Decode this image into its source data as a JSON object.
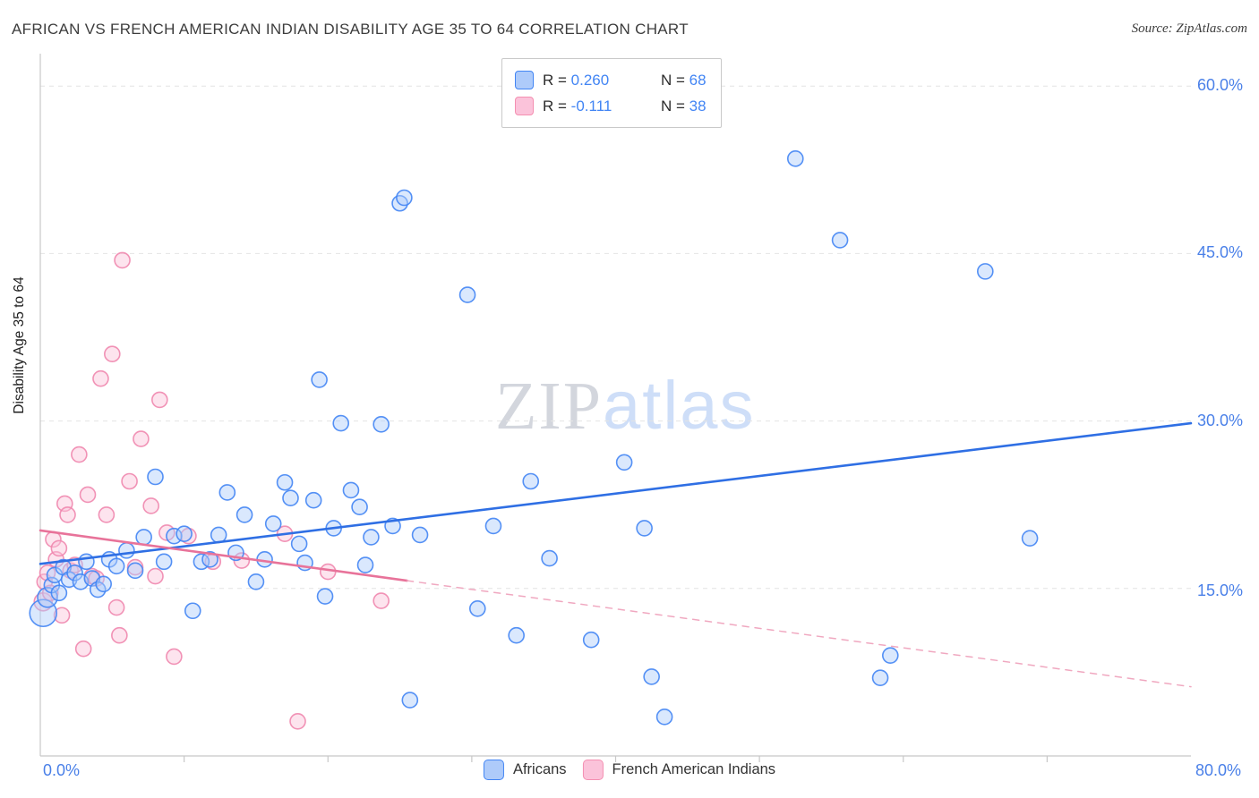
{
  "header": {
    "title": "AFRICAN VS FRENCH AMERICAN INDIAN DISABILITY AGE 35 TO 64 CORRELATION CHART",
    "source": "Source: ZipAtlas.com"
  },
  "legend_box": {
    "series": [
      {
        "r_label": "R = ",
        "r_value": "0.260",
        "n_label": "N = ",
        "n_value": "68",
        "color": "#aecbfa",
        "border": "#4285f4"
      },
      {
        "r_label": "R = ",
        "r_value": "-0.111",
        "n_label": "N = ",
        "n_value": "38",
        "color": "#fbc3da",
        "border": "#f48fb1"
      }
    ]
  },
  "watermark": {
    "part1": "ZIP",
    "part2": "atlas"
  },
  "y_axis": {
    "label": "Disability Age 35 to 64",
    "tick_labels": [
      "60.0%",
      "45.0%",
      "30.0%",
      "15.0%"
    ],
    "tick_values": [
      60,
      45,
      30,
      15
    ]
  },
  "x_axis": {
    "min_label": "0.0%",
    "max_label": "80.0%",
    "min": 0,
    "max": 80
  },
  "bottom_legend": [
    {
      "label": "Africans",
      "color": "#aecbfa",
      "border": "#4285f4"
    },
    {
      "label": "French American Indians",
      "color": "#fbc3da",
      "border": "#f48fb1"
    }
  ],
  "chart_data": {
    "type": "scatter",
    "title": "AFRICAN VS FRENCH AMERICAN INDIAN DISABILITY AGE 35 TO 64 CORRELATION CHART",
    "xlabel": "",
    "ylabel": "Disability Age 35 to 64",
    "xlim": [
      0,
      80
    ],
    "ylim": [
      0,
      62.5
    ],
    "grid_y_values": [
      15,
      30,
      45,
      60
    ],
    "x_tick_step": 10,
    "legend_position": "bottom",
    "series": [
      {
        "name": "Africans",
        "R": 0.26,
        "N": 68,
        "fill": "#aecbfa",
        "stroke": "#4285f4",
        "points": [
          [
            0.2,
            12.8,
            15
          ],
          [
            0.5,
            14.2,
            11
          ],
          [
            0.8,
            15.3
          ],
          [
            1.0,
            16.2
          ],
          [
            1.3,
            14.6
          ],
          [
            1.6,
            16.9
          ],
          [
            2.0,
            15.8
          ],
          [
            2.4,
            16.4
          ],
          [
            2.8,
            15.6
          ],
          [
            3.2,
            17.4
          ],
          [
            3.6,
            15.9
          ],
          [
            4.0,
            14.9
          ],
          [
            4.4,
            15.4
          ],
          [
            4.8,
            17.6
          ],
          [
            5.3,
            17.0
          ],
          [
            6.0,
            18.4
          ],
          [
            6.6,
            16.6
          ],
          [
            7.2,
            19.6
          ],
          [
            8.0,
            25.0
          ],
          [
            8.6,
            17.4
          ],
          [
            9.3,
            19.7
          ],
          [
            10.0,
            19.9
          ],
          [
            10.6,
            13.0
          ],
          [
            11.2,
            17.4
          ],
          [
            11.8,
            17.6
          ],
          [
            12.4,
            19.8
          ],
          [
            13.0,
            23.6
          ],
          [
            13.6,
            18.2
          ],
          [
            14.2,
            21.6
          ],
          [
            15.0,
            15.6
          ],
          [
            15.6,
            17.6
          ],
          [
            16.2,
            20.8
          ],
          [
            17.0,
            24.5
          ],
          [
            17.4,
            23.1
          ],
          [
            18.0,
            19.0
          ],
          [
            18.4,
            17.3
          ],
          [
            19.0,
            22.9
          ],
          [
            19.4,
            33.7
          ],
          [
            19.8,
            14.3
          ],
          [
            20.4,
            20.4
          ],
          [
            20.9,
            29.8
          ],
          [
            21.6,
            23.8
          ],
          [
            22.2,
            22.3
          ],
          [
            22.6,
            17.1
          ],
          [
            23.0,
            19.6
          ],
          [
            23.7,
            29.7
          ],
          [
            24.5,
            20.6
          ],
          [
            25.0,
            49.5
          ],
          [
            25.3,
            50.0
          ],
          [
            25.7,
            5.0
          ],
          [
            26.4,
            19.8
          ],
          [
            29.7,
            41.3
          ],
          [
            30.4,
            13.2
          ],
          [
            31.5,
            20.6
          ],
          [
            33.1,
            10.8
          ],
          [
            34.1,
            24.6
          ],
          [
            35.4,
            17.7
          ],
          [
            38.3,
            10.4
          ],
          [
            40.6,
            26.3
          ],
          [
            42.0,
            20.4
          ],
          [
            42.5,
            7.1
          ],
          [
            43.4,
            3.5
          ],
          [
            52.5,
            53.5
          ],
          [
            55.6,
            46.2
          ],
          [
            58.4,
            7.0
          ],
          [
            59.1,
            9.0
          ],
          [
            65.7,
            43.4
          ],
          [
            68.8,
            19.5
          ]
        ]
      },
      {
        "name": "French American Indians",
        "R": -0.111,
        "N": 38,
        "fill": "#fbc3da",
        "stroke": "#f087ae",
        "points": [
          [
            0.2,
            13.8,
            10
          ],
          [
            0.3,
            15.6
          ],
          [
            0.5,
            16.4
          ],
          [
            0.7,
            14.6
          ],
          [
            0.9,
            19.4
          ],
          [
            1.1,
            17.6
          ],
          [
            1.3,
            18.6
          ],
          [
            1.5,
            12.6
          ],
          [
            1.7,
            22.6
          ],
          [
            1.9,
            21.6
          ],
          [
            2.1,
            16.6
          ],
          [
            2.4,
            17.1
          ],
          [
            2.7,
            27.0
          ],
          [
            3.0,
            9.6
          ],
          [
            3.3,
            23.4
          ],
          [
            3.6,
            16.1
          ],
          [
            3.9,
            15.9
          ],
          [
            4.2,
            33.8
          ],
          [
            4.6,
            21.6
          ],
          [
            5.0,
            36.0
          ],
          [
            5.3,
            13.3
          ],
          [
            5.5,
            10.8
          ],
          [
            5.7,
            44.4
          ],
          [
            6.2,
            24.6
          ],
          [
            6.6,
            16.9
          ],
          [
            7.0,
            28.4
          ],
          [
            7.7,
            22.4
          ],
          [
            8.0,
            16.1
          ],
          [
            8.3,
            31.9
          ],
          [
            8.8,
            20.0
          ],
          [
            9.3,
            8.9
          ],
          [
            10.3,
            19.7
          ],
          [
            12.0,
            17.4
          ],
          [
            14.0,
            17.5
          ],
          [
            17.0,
            19.9
          ],
          [
            17.9,
            3.1
          ],
          [
            20.0,
            16.5
          ],
          [
            23.7,
            13.9
          ]
        ]
      }
    ],
    "trend_lines": [
      {
        "series": "Africans",
        "style": "solid",
        "color": "#2f6fe4",
        "x1": 0,
        "y1": 17.2,
        "x2": 80,
        "y2": 29.8
      },
      {
        "series": "French American Indians",
        "style": "solid",
        "color": "#e8739a",
        "x1": 0,
        "y1": 20.2,
        "x2": 25.5,
        "y2": 15.7
      },
      {
        "series": "French American Indians",
        "style": "dashed",
        "color": "#f0a8c0",
        "x1": 25.5,
        "y1": 15.7,
        "x2": 80,
        "y2": 6.2
      }
    ]
  }
}
